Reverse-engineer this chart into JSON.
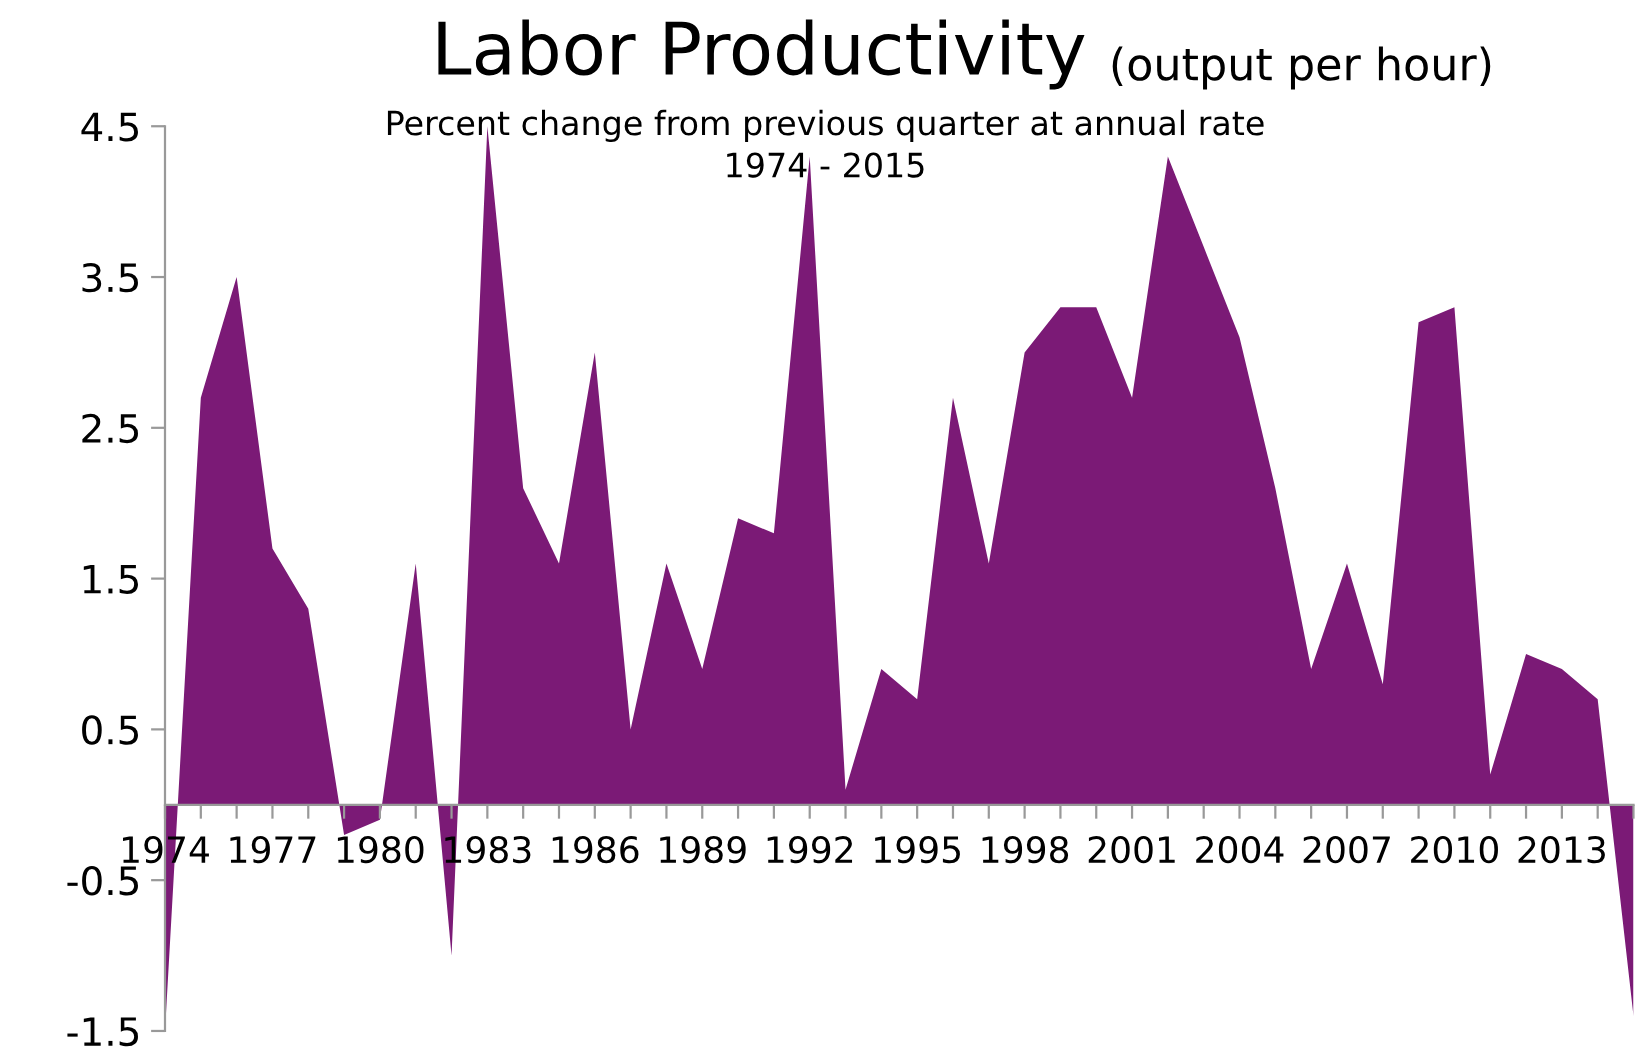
{
  "chart_data": {
    "type": "area",
    "title": "Labor Productivity",
    "subtitle": "(output per hour)",
    "annotations": [
      "Percent change from previous quarter at annual rate",
      "1974 - 2015"
    ],
    "x": [
      1974,
      1975,
      1976,
      1977,
      1978,
      1979,
      1980,
      1981,
      1982,
      1983,
      1984,
      1985,
      1986,
      1987,
      1988,
      1989,
      1990,
      1991,
      1992,
      1993,
      1994,
      1995,
      1996,
      1997,
      1998,
      1999,
      2000,
      2001,
      2002,
      2003,
      2004,
      2005,
      2006,
      2007,
      2008,
      2009,
      2010,
      2011,
      2012,
      2013,
      2014,
      2015
    ],
    "series": [
      {
        "color": "#7b1a76",
        "values": [
          -1.5,
          2.7,
          3.5,
          1.7,
          1.3,
          -0.2,
          -0.1,
          1.6,
          -1.0,
          4.5,
          2.1,
          1.6,
          3.0,
          0.5,
          1.6,
          0.9,
          1.9,
          1.8,
          4.3,
          0.1,
          0.9,
          0.7,
          2.7,
          1.6,
          3.0,
          3.3,
          3.3,
          2.7,
          4.3,
          3.7,
          3.1,
          2.1,
          0.9,
          1.6,
          0.8,
          3.2,
          3.3,
          0.2,
          1.0,
          0.9,
          0.7,
          -1.4
        ]
      }
    ],
    "xlim": [
      1974,
      2015
    ],
    "ylim": [
      -1.5,
      4.5
    ],
    "yticks": [
      4.5,
      3.5,
      2.5,
      1.5,
      0.5,
      -0.5,
      -1.5
    ],
    "xticks": [
      1974,
      {
        "value": 1975,
        "label": null
      },
      {
        "value": 1976,
        "label": null
      },
      1977,
      {
        "value": 1978,
        "label": null
      },
      {
        "value": 1979,
        "label": null
      },
      1980,
      {
        "value": 1981,
        "label": null
      },
      {
        "value": 1982,
        "label": null
      },
      1983,
      {
        "value": 1984,
        "label": null
      },
      {
        "value": 1985,
        "label": null
      },
      1986,
      {
        "value": 1987,
        "label": null
      },
      {
        "value": 1988,
        "label": null
      },
      1989,
      {
        "value": 1990,
        "label": null
      },
      {
        "value": 1991,
        "label": null
      },
      1992,
      {
        "value": 1993,
        "label": null
      },
      {
        "value": 1994,
        "label": null
      },
      1995,
      {
        "value": 1996,
        "label": null
      },
      {
        "value": 1997,
        "label": null
      },
      1998,
      {
        "value": 1999,
        "label": null
      },
      {
        "value": 2000,
        "label": null
      },
      2001,
      {
        "value": 2002,
        "label": null
      },
      {
        "value": 2003,
        "label": null
      },
      2004,
      {
        "value": 2005,
        "label": null
      },
      {
        "value": 2006,
        "label": null
      },
      2007,
      {
        "value": 2008,
        "label": null
      },
      {
        "value": 2009,
        "label": null
      },
      2010,
      {
        "value": 2011,
        "label": null
      },
      {
        "value": 2012,
        "label": null
      },
      2013,
      {
        "value": 2014,
        "label": null
      },
      {
        "value": 2015,
        "label": null
      }
    ],
    "grid": false,
    "legend": false
  }
}
